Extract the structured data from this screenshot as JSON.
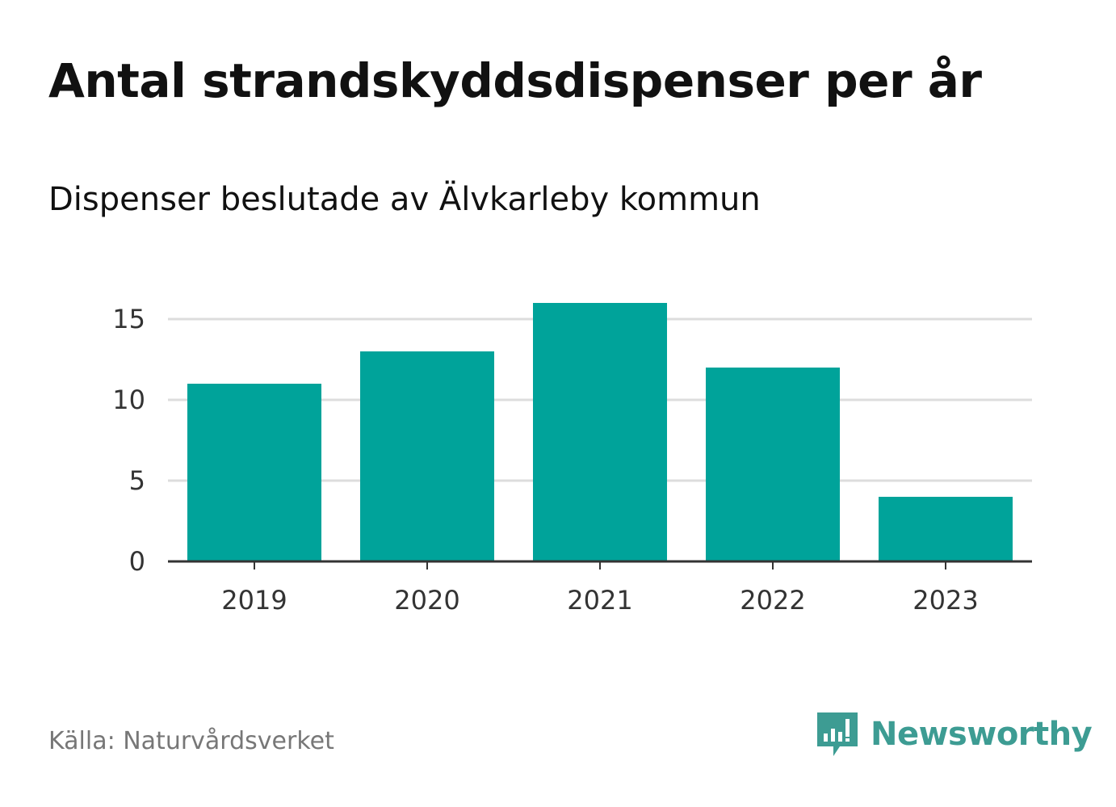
{
  "header": {
    "title": "Antal strandskyddsdispenser per år",
    "subtitle": "Dispenser beslutade av Älvkarleby kommun"
  },
  "footer": {
    "source": "Källa: Naturvårdsverket",
    "brand": "Newsworthy",
    "brand_icon": "bar-chart-speech-bubble-icon"
  },
  "colors": {
    "bar": "#00a39a",
    "grid": "#dddddd",
    "axis": "#333333",
    "brand": "#3d9c93"
  },
  "chart_data": {
    "type": "bar",
    "title": "Antal strandskyddsdispenser per år",
    "subtitle": "Dispenser beslutade av Älvkarleby kommun",
    "categories": [
      "2019",
      "2020",
      "2021",
      "2022",
      "2023"
    ],
    "values": [
      11,
      13,
      16,
      12,
      4
    ],
    "yticks": [
      0,
      5,
      10,
      15
    ],
    "ylim": [
      0,
      16
    ],
    "xlabel": "",
    "ylabel": "",
    "grid": true,
    "legend": "none"
  }
}
